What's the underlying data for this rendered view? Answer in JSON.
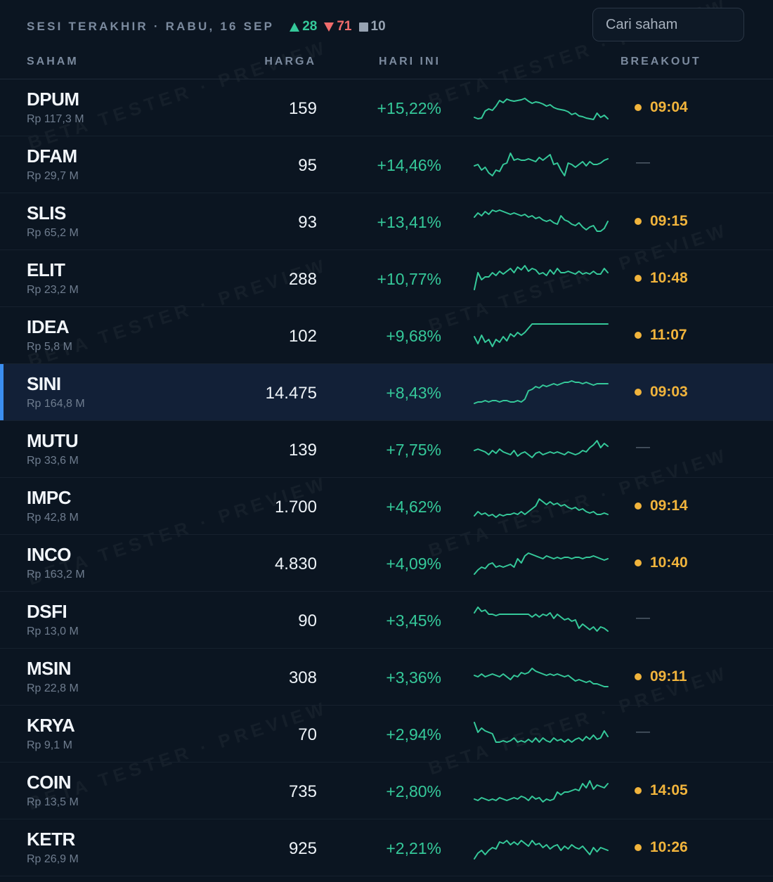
{
  "session": {
    "label": "SESI TERAKHIR · RABU, 16 SEP",
    "up": "28",
    "down": "71",
    "flat": "10"
  },
  "search": {
    "placeholder": "Cari saham"
  },
  "columns": {
    "stock": "SAHAM",
    "price": "HARGA",
    "today": "HARI INI",
    "breakout": "BREAKOUT"
  },
  "colors": {
    "positive": "#35c99a",
    "negative": "#f06c6c",
    "breakout": "#f1b43c",
    "selected_accent": "#3b8ef0"
  },
  "rows": [
    {
      "ticker": "DPUM",
      "value": "Rp 117,3 M",
      "price": "159",
      "change": "+15,22%",
      "breakout": "09:04",
      "spark": [
        6,
        4,
        5,
        15,
        18,
        16,
        22,
        30,
        27,
        32,
        30,
        29,
        30,
        31,
        33,
        29,
        26,
        28,
        27,
        25,
        22,
        24,
        20,
        18,
        17,
        16,
        14,
        10,
        12,
        8,
        7,
        5,
        4,
        3,
        12,
        6,
        9,
        4
      ],
      "selected": false
    },
    {
      "ticker": "DFAM",
      "value": "Rp 29,7 M",
      "price": "95",
      "change": "+14,46%",
      "breakout": "—",
      "spark": [
        18,
        20,
        12,
        16,
        8,
        4,
        12,
        10,
        20,
        22,
        36,
        26,
        28,
        26,
        26,
        28,
        26,
        24,
        30,
        26,
        30,
        34,
        20,
        22,
        12,
        4,
        22,
        20,
        16,
        20,
        24,
        18,
        24,
        20,
        20,
        22,
        26,
        28
      ],
      "selected": false
    },
    {
      "ticker": "SLIS",
      "value": "Rp 65,2 M",
      "price": "93",
      "change": "+13,41%",
      "breakout": "09:15",
      "spark": [
        26,
        32,
        28,
        34,
        30,
        36,
        34,
        36,
        34,
        32,
        30,
        32,
        30,
        28,
        30,
        26,
        28,
        24,
        26,
        22,
        20,
        22,
        18,
        16,
        28,
        22,
        20,
        16,
        14,
        18,
        12,
        8,
        12,
        14,
        6,
        6,
        10,
        20
      ],
      "selected": false
    },
    {
      "ticker": "ELIT",
      "value": "Rp 23,2 M",
      "price": "288",
      "change": "+10,77%",
      "breakout": "10:48",
      "spark": [
        4,
        28,
        18,
        22,
        22,
        28,
        24,
        30,
        26,
        30,
        34,
        28,
        36,
        32,
        38,
        30,
        34,
        32,
        26,
        28,
        24,
        32,
        26,
        34,
        28,
        28,
        30,
        28,
        26,
        30,
        26,
        28,
        26,
        30,
        26,
        26,
        34,
        28
      ],
      "selected": false
    },
    {
      "ticker": "IDEA",
      "value": "Rp 5,8 M",
      "price": "102",
      "change": "+9,68%",
      "breakout": "11:07",
      "spark": [
        18,
        8,
        20,
        10,
        14,
        4,
        14,
        10,
        18,
        12,
        22,
        18,
        24,
        20,
        24,
        30,
        36,
        36,
        36,
        36,
        36,
        36,
        36,
        36,
        36,
        36,
        36,
        36,
        36,
        36,
        36,
        36,
        36,
        36,
        36,
        36,
        36,
        36
      ],
      "selected": false
    },
    {
      "ticker": "SINI",
      "value": "Rp 164,8 M",
      "price": "14.475",
      "change": "+8,43%",
      "breakout": "09:03",
      "spark": [
        4,
        6,
        6,
        8,
        6,
        8,
        8,
        6,
        8,
        8,
        6,
        6,
        8,
        6,
        10,
        22,
        24,
        28,
        26,
        30,
        28,
        30,
        32,
        30,
        32,
        34,
        34,
        36,
        34,
        34,
        32,
        34,
        32,
        30,
        32,
        32,
        32,
        32
      ],
      "selected": false
    },
    {
      "ticker": "MUTU",
      "value": "Rp 33,6 M",
      "price": "139",
      "change": "+7,75%",
      "breakout": "—",
      "spark": [
        18,
        20,
        18,
        16,
        12,
        18,
        14,
        20,
        16,
        14,
        12,
        18,
        10,
        14,
        16,
        12,
        8,
        14,
        16,
        12,
        14,
        16,
        14,
        16,
        14,
        12,
        16,
        14,
        12,
        14,
        18,
        16,
        22,
        26,
        32,
        22,
        28,
        24
      ],
      "selected": false
    },
    {
      "ticker": "IMPC",
      "value": "Rp 42,8 M",
      "price": "1.700",
      "change": "+4,62%",
      "breakout": "09:14",
      "spark": [
        6,
        12,
        8,
        10,
        6,
        8,
        4,
        8,
        6,
        8,
        8,
        10,
        8,
        12,
        8,
        12,
        16,
        20,
        30,
        26,
        22,
        26,
        22,
        24,
        20,
        22,
        18,
        16,
        18,
        14,
        16,
        12,
        10,
        12,
        8,
        8,
        10,
        8
      ],
      "selected": false
    },
    {
      "ticker": "INCO",
      "value": "Rp 163,2 M",
      "price": "4.830",
      "change": "+4,09%",
      "breakout": "10:40",
      "spark": [
        4,
        10,
        14,
        12,
        18,
        20,
        14,
        16,
        14,
        16,
        18,
        14,
        26,
        20,
        30,
        34,
        32,
        30,
        28,
        26,
        30,
        28,
        26,
        28,
        26,
        28,
        28,
        26,
        28,
        28,
        26,
        28,
        28,
        30,
        28,
        26,
        24,
        26
      ],
      "selected": false
    },
    {
      "ticker": "DSFI",
      "value": "Rp 13,0 M",
      "price": "90",
      "change": "+3,45%",
      "breakout": "—",
      "spark": [
        30,
        38,
        32,
        34,
        28,
        28,
        26,
        28,
        28,
        28,
        28,
        28,
        28,
        28,
        28,
        28,
        24,
        28,
        24,
        28,
        26,
        30,
        22,
        28,
        24,
        20,
        22,
        18,
        20,
        8,
        14,
        10,
        6,
        10,
        4,
        10,
        8,
        4
      ],
      "selected": false
    },
    {
      "ticker": "MSIN",
      "value": "Rp 22,8 M",
      "price": "308",
      "change": "+3,36%",
      "breakout": "09:11",
      "spark": [
        22,
        20,
        24,
        20,
        22,
        24,
        22,
        20,
        24,
        20,
        16,
        22,
        20,
        26,
        24,
        26,
        32,
        28,
        26,
        24,
        22,
        24,
        22,
        24,
        22,
        20,
        22,
        18,
        14,
        16,
        14,
        12,
        14,
        10,
        10,
        8,
        6,
        6
      ],
      "selected": false
    },
    {
      "ticker": "KRYA",
      "value": "Rp 9,1 M",
      "price": "70",
      "change": "+2,94%",
      "breakout": "—",
      "spark": [
        36,
        22,
        28,
        24,
        22,
        20,
        8,
        8,
        10,
        8,
        10,
        14,
        8,
        10,
        8,
        12,
        8,
        14,
        8,
        14,
        10,
        8,
        14,
        10,
        12,
        8,
        12,
        8,
        12,
        14,
        10,
        16,
        12,
        18,
        12,
        14,
        24,
        16
      ],
      "selected": false
    },
    {
      "ticker": "COIN",
      "value": "Rp 13,5 M",
      "price": "735",
      "change": "+2,80%",
      "breakout": "14:05",
      "spark": [
        8,
        6,
        10,
        8,
        6,
        8,
        6,
        10,
        8,
        6,
        8,
        10,
        8,
        12,
        10,
        6,
        12,
        8,
        10,
        4,
        8,
        6,
        8,
        18,
        14,
        18,
        18,
        20,
        22,
        20,
        30,
        24,
        34,
        22,
        28,
        26,
        24,
        30
      ],
      "selected": false
    },
    {
      "ticker": "KETR",
      "value": "Rp 26,9 M",
      "price": "925",
      "change": "+2,21%",
      "breakout": "10:26",
      "spark": [
        4,
        12,
        16,
        10,
        16,
        20,
        18,
        28,
        26,
        30,
        24,
        28,
        24,
        30,
        26,
        22,
        30,
        24,
        26,
        20,
        24,
        18,
        22,
        24,
        16,
        22,
        18,
        24,
        20,
        18,
        22,
        16,
        10,
        20,
        14,
        20,
        18,
        16
      ],
      "selected": false
    }
  ]
}
